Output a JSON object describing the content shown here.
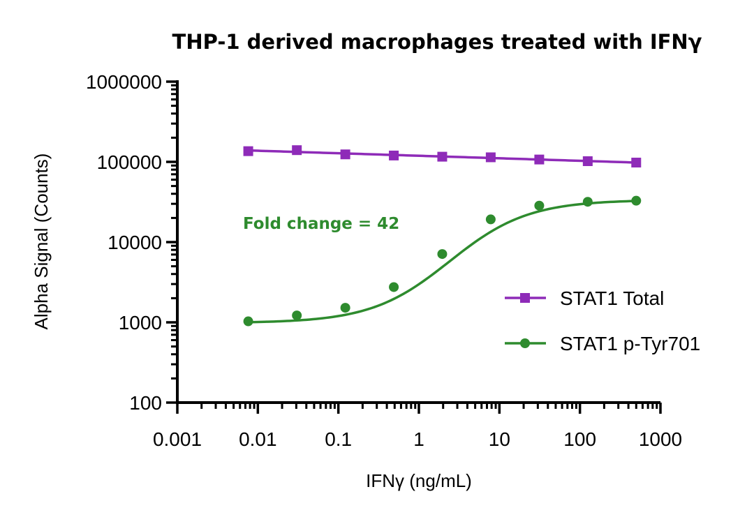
{
  "colors": {
    "stat1_total": "#8e2bb8",
    "stat1_ptyr": "#2e8b2e",
    "axis": "#000000"
  },
  "chart_data": {
    "type": "scatter",
    "title": "THP-1 derived macrophages treated with IFNγ",
    "xlabel": "IFNγ (ng/mL)",
    "ylabel": "Alpha Signal (Counts)",
    "xscale": "log",
    "yscale": "log",
    "xlim": [
      0.001,
      1000
    ],
    "ylim": [
      100,
      1000000
    ],
    "xticks": [
      0.001,
      0.01,
      0.1,
      1,
      10,
      100,
      1000
    ],
    "xtick_labels": [
      "0.001",
      "0.01",
      "0.1",
      "1",
      "10",
      "100",
      "1000"
    ],
    "yticks": [
      100,
      1000,
      10000,
      100000,
      1000000
    ],
    "ytick_labels": [
      "100",
      "1000",
      "10000",
      "100000",
      "1000000"
    ],
    "legend_position": "right",
    "annotation": "Fold change = 42",
    "series": [
      {
        "name": "STAT1 Total",
        "marker": "square",
        "color": "#8e2bb8",
        "x": [
          0.0076,
          0.0305,
          0.122,
          0.488,
          1.95,
          7.8,
          31.25,
          125,
          500
        ],
        "y": [
          136000,
          140000,
          124000,
          120000,
          116000,
          114000,
          107000,
          102000,
          98000
        ],
        "fit": "line"
      },
      {
        "name": "STAT1 p-Tyr701",
        "marker": "circle",
        "color": "#2e8b2e",
        "x": [
          0.0076,
          0.0305,
          0.122,
          0.488,
          1.95,
          7.8,
          31.25,
          125,
          500
        ],
        "y": [
          1030,
          1220,
          1520,
          2750,
          7100,
          19200,
          28500,
          31800,
          32800
        ],
        "fit": "sigmoid"
      }
    ]
  }
}
